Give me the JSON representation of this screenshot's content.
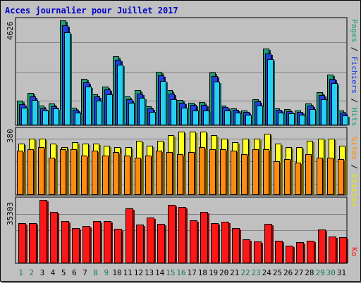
{
  "title": "Acces journalier pour Juillet 2017",
  "colors": {
    "pages": "#1f9e78",
    "fichiers": "#2040e0",
    "hits": "#26d0f2",
    "sites": "#ffff20",
    "visites": "#ff8c10",
    "ko": "#ff1616",
    "weekday": "#000000",
    "weekend": "#167a50",
    "grid": "#808080"
  },
  "chart_data": [
    {
      "type": "bar",
      "panel": "hits",
      "ymax_label": "4626",
      "ylim": [
        0,
        4626
      ],
      "legend": [
        {
          "label": "Pages",
          "color": "#1f9e78"
        },
        {
          "label": "Fichiers",
          "color": "#2040e0"
        },
        {
          "label": "Hits",
          "color": "#26d0f2"
        }
      ],
      "categories": [
        "1",
        "2",
        "3",
        "4",
        "5",
        "6",
        "7",
        "8",
        "9",
        "10",
        "11",
        "12",
        "13",
        "14",
        "15",
        "16",
        "17",
        "18",
        "19",
        "20",
        "21",
        "22",
        "23",
        "24",
        "25",
        "26",
        "27",
        "28",
        "29",
        "30",
        "31"
      ],
      "series": [
        {
          "name": "Pages",
          "values": [
            1090,
            1430,
            860,
            960,
            4630,
            770,
            2050,
            1360,
            1710,
            3050,
            1270,
            1560,
            850,
            2370,
            1540,
            1110,
            990,
            1010,
            2330,
            880,
            760,
            650,
            1150,
            3380,
            750,
            700,
            660,
            960,
            1450,
            2220,
            660
          ]
        },
        {
          "name": "Fichiers",
          "values": [
            940,
            1280,
            760,
            850,
            4420,
            680,
            1890,
            1260,
            1570,
            2880,
            1140,
            1400,
            730,
            2200,
            1410,
            990,
            890,
            910,
            2170,
            800,
            680,
            580,
            1050,
            3160,
            670,
            620,
            580,
            860,
            1330,
            2040,
            570
          ]
        },
        {
          "name": "Hits",
          "values": [
            780,
            1110,
            640,
            740,
            4090,
            570,
            1700,
            1100,
            1360,
            2660,
            990,
            1220,
            600,
            1950,
            1140,
            770,
            640,
            660,
            1920,
            650,
            560,
            460,
            880,
            2920,
            560,
            520,
            460,
            710,
            1150,
            1860,
            430
          ]
        }
      ]
    },
    {
      "type": "bar",
      "panel": "visits",
      "ymax_label": "380",
      "ylim": [
        0,
        380
      ],
      "legend": [
        {
          "label": "Sites",
          "color": "#ffff20"
        },
        {
          "label": "Visites",
          "color": "#ff8c10"
        }
      ],
      "categories": [
        "1",
        "2",
        "3",
        "4",
        "5",
        "6",
        "7",
        "8",
        "9",
        "10",
        "11",
        "12",
        "13",
        "14",
        "15",
        "16",
        "17",
        "18",
        "19",
        "20",
        "21",
        "22",
        "23",
        "24",
        "25",
        "26",
        "27",
        "28",
        "29",
        "30",
        "31"
      ],
      "series": [
        {
          "name": "Sites",
          "values": [
            300,
            330,
            330,
            300,
            280,
            310,
            300,
            300,
            290,
            280,
            280,
            320,
            290,
            320,
            350,
            370,
            370,
            370,
            350,
            330,
            310,
            330,
            330,
            360,
            300,
            280,
            280,
            320,
            330,
            330,
            290
          ]
        },
        {
          "name": "Visites",
          "values": [
            260,
            270,
            280,
            220,
            270,
            270,
            230,
            260,
            230,
            250,
            230,
            220,
            230,
            260,
            250,
            240,
            250,
            280,
            270,
            270,
            260,
            240,
            270,
            270,
            200,
            210,
            190,
            240,
            220,
            220,
            210
          ]
        }
      ]
    },
    {
      "type": "bar",
      "panel": "ko",
      "ymax_label": "35303",
      "ylim": [
        0,
        35303
      ],
      "legend": [
        {
          "label": "Ko",
          "color": "#ff1616"
        }
      ],
      "categories": [
        "1",
        "2",
        "3",
        "4",
        "5",
        "6",
        "7",
        "8",
        "9",
        "10",
        "11",
        "12",
        "13",
        "14",
        "15",
        "16",
        "17",
        "18",
        "19",
        "20",
        "21",
        "22",
        "23",
        "24",
        "25",
        "26",
        "27",
        "28",
        "29",
        "30",
        "31"
      ],
      "series": [
        {
          "name": "Ko",
          "values": [
            22200,
            22500,
            35300,
            28600,
            23500,
            19600,
            20700,
            23600,
            23500,
            19200,
            30400,
            21700,
            25400,
            22000,
            32700,
            31300,
            24100,
            28600,
            22500,
            23300,
            19600,
            13500,
            12000,
            21800,
            12600,
            10000,
            11600,
            12700,
            18900,
            14900,
            14600
          ]
        }
      ]
    }
  ]
}
